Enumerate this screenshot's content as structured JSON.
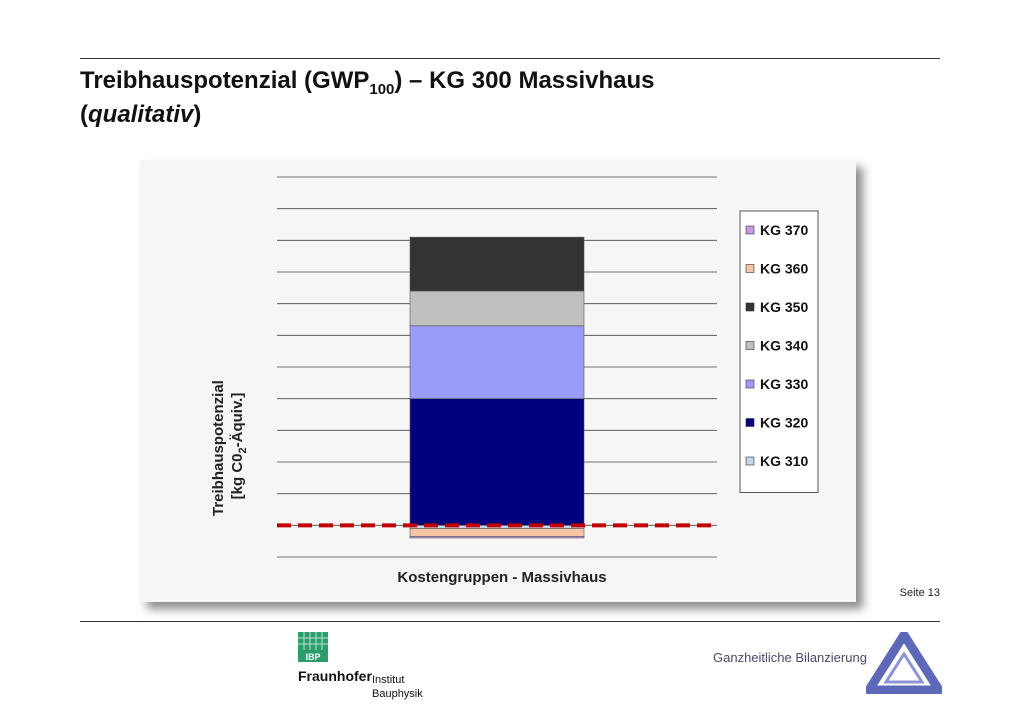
{
  "slide": {
    "title_main": "Treibhauspotenzial (GWP",
    "title_sub": "100",
    "title_rest": ") – KG 300 Massivhaus",
    "title_qual": "qualitativ",
    "page_number": "Seite 13"
  },
  "footer": {
    "brand": "Fraunhofer",
    "institute_line1": "Institut",
    "institute_line2": "Bauphysik",
    "ibp_badge": "IBP",
    "tagline": "Ganzheitliche Bilanzierung"
  },
  "chart_data": {
    "type": "bar",
    "stacked": true,
    "qualitative": true,
    "categories": [
      ""
    ],
    "xlabel": "Kostengruppen - Massivhaus",
    "ylabel_line1": "Treibhauspotenzial",
    "ylabel_line2": "[kg C0",
    "ylabel_sub": "2",
    "ylabel_line2_rest": "-Äquiv.]",
    "ylim": [
      -1,
      11
    ],
    "gridlines": true,
    "reference_line": {
      "value": 0,
      "color": "#c00000",
      "style": "dashed"
    },
    "legend_position": "right",
    "series": [
      {
        "name": "KG 310",
        "values": [
          -0.1
        ],
        "color": "#c7d4f0"
      },
      {
        "name": "KG 320",
        "values": [
          4.0
        ],
        "color": "#00007e"
      },
      {
        "name": "KG 330",
        "values": [
          2.3
        ],
        "color": "#9b9bfb"
      },
      {
        "name": "KG 340",
        "values": [
          1.1
        ],
        "color": "#c0c0c0"
      },
      {
        "name": "KG 350",
        "values": [
          1.7
        ],
        "color": "#333333"
      },
      {
        "name": "KG 360",
        "values": [
          -0.25
        ],
        "color": "#f7c4a4"
      },
      {
        "name": "KG 370",
        "values": [
          -0.05
        ],
        "color": "#c59be6"
      }
    ]
  }
}
